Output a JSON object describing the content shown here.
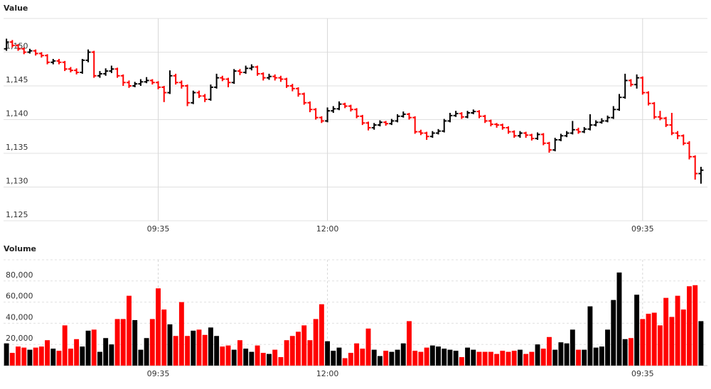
{
  "chart_data": [
    {
      "type": "ohlc",
      "title": "Value",
      "categories": [
        null,
        null,
        null,
        null,
        null,
        null,
        null,
        null,
        null,
        null,
        null,
        null,
        null,
        null,
        null,
        null,
        null,
        null,
        null,
        null,
        null,
        null,
        null,
        null,
        null,
        null,
        "09:35",
        null,
        null,
        null,
        null,
        null,
        null,
        null,
        null,
        null,
        null,
        null,
        null,
        null,
        null,
        null,
        null,
        null,
        null,
        null,
        null,
        null,
        null,
        null,
        null,
        null,
        null,
        null,
        null,
        "12:00",
        null,
        null,
        null,
        null,
        null,
        null,
        null,
        null,
        null,
        null,
        null,
        null,
        null,
        null,
        null,
        null,
        null,
        null,
        null,
        null,
        null,
        null,
        null,
        null,
        null,
        null,
        null,
        null,
        null,
        null,
        null,
        null,
        null,
        null,
        null,
        null,
        null,
        null,
        null,
        null,
        null,
        null,
        null,
        null,
        null,
        null,
        null,
        null,
        null,
        null,
        null,
        null,
        null,
        "09:35",
        null,
        null,
        null,
        null,
        null,
        null,
        null,
        null,
        null,
        null
      ],
      "open": [
        1150.5,
        1151.5,
        1151,
        1150.5,
        1150,
        1150.2,
        1149.8,
        1149.5,
        1148.5,
        1148.7,
        1148.5,
        1147.5,
        1147.3,
        1147,
        1148.8,
        1150,
        1146.5,
        1146.8,
        1147.2,
        1147.5,
        1146.5,
        1145.5,
        1145,
        1145.3,
        1145.6,
        1145.8,
        1145.5,
        1144.8,
        1144,
        1146.5,
        1145.5,
        1145,
        1142.5,
        1144,
        1143.5,
        1143,
        1144.8,
        1146.2,
        1146,
        1145.5,
        1147.2,
        1147,
        1147.6,
        1147.8,
        1146.8,
        1146.2,
        1146.4,
        1146.2,
        1146,
        1145,
        1144.6,
        1143.8,
        1142.5,
        1141.5,
        1140.3,
        1139.8,
        1141.3,
        1141.6,
        1142.3,
        1142,
        1141.5,
        1140.5,
        1139.5,
        1138.8,
        1139.2,
        1139.6,
        1139.4,
        1139.8,
        1140.5,
        1140.8,
        1140.3,
        1138.2,
        1138,
        1137.5,
        1138,
        1138.3,
        1139.8,
        1140.6,
        1140.9,
        1140.4,
        1141,
        1141.2,
        1140.5,
        1139.8,
        1139.3,
        1139.2,
        1138.8,
        1138.2,
        1137.6,
        1138,
        1137.7,
        1137.2,
        1137.8,
        1136.5,
        1135.5,
        1137,
        1137.6,
        1138,
        1138.5,
        1138.2,
        1138.6,
        1139.2,
        1139.6,
        1139.8,
        1140.3,
        1141.5,
        1143.3,
        1145.8,
        1145.2,
        1146.2,
        1144,
        1142.4,
        1140.4,
        1140.2,
        1139.2,
        1138,
        1137.6,
        1136.5,
        1134.5,
        1132
      ],
      "high": [
        1152,
        1151.8,
        1151.2,
        1150.7,
        1150.5,
        1150.4,
        1150,
        1149.7,
        1149,
        1149,
        1148.7,
        1147.8,
        1147.6,
        1149,
        1150.4,
        1150.2,
        1147.2,
        1147.6,
        1148,
        1147.7,
        1146.7,
        1145.8,
        1145.6,
        1146,
        1146.3,
        1146,
        1145.7,
        1145,
        1147.3,
        1146.8,
        1145.8,
        1145.2,
        1144.3,
        1144.3,
        1143.8,
        1145.2,
        1146.8,
        1146.5,
        1146.2,
        1147.5,
        1147.5,
        1148,
        1148.2,
        1148,
        1147,
        1146.8,
        1146.7,
        1146.5,
        1146.2,
        1145.3,
        1144.8,
        1144,
        1142.7,
        1141.7,
        1140.5,
        1141.8,
        1142,
        1142.7,
        1142.5,
        1142.2,
        1141.7,
        1140.7,
        1139.7,
        1139.5,
        1139.9,
        1139.8,
        1140.1,
        1140.8,
        1141.2,
        1141,
        1140.5,
        1138.5,
        1138.2,
        1138.3,
        1138.6,
        1140.1,
        1141,
        1141.3,
        1141.1,
        1141.3,
        1141.5,
        1141.4,
        1140.7,
        1140,
        1139.5,
        1139.4,
        1139,
        1138.4,
        1138.3,
        1138.2,
        1137.9,
        1138.1,
        1138,
        1136.7,
        1137.3,
        1137.9,
        1138.3,
        1139.8,
        1138.8,
        1138.9,
        1140.8,
        1139.9,
        1140.2,
        1140.6,
        1142,
        1143.8,
        1146.8,
        1146,
        1146.7,
        1146.4,
        1144.2,
        1142.6,
        1141.3,
        1140.4,
        1141,
        1138.3,
        1137.8,
        1136.8,
        1134.7,
        1133
      ],
      "low": [
        1150.2,
        1150.7,
        1150.2,
        1149.7,
        1149.8,
        1149.5,
        1149.2,
        1148.2,
        1148.2,
        1148.2,
        1147.2,
        1147,
        1146.7,
        1146.8,
        1148.5,
        1146.2,
        1146.2,
        1146.5,
        1146.9,
        1146.2,
        1145,
        1144.7,
        1144.8,
        1145,
        1145.4,
        1145.2,
        1144.5,
        1142.6,
        1143.8,
        1145.2,
        1144.6,
        1142,
        1142.3,
        1143.2,
        1142.6,
        1142.8,
        1144.6,
        1145.7,
        1144.8,
        1145.3,
        1146.6,
        1146.8,
        1147.3,
        1146.5,
        1145.8,
        1145.9,
        1145.8,
        1145.6,
        1144.7,
        1144.2,
        1143.4,
        1142.2,
        1141.1,
        1140,
        1139.5,
        1139.6,
        1141,
        1141.4,
        1141.7,
        1141.2,
        1140.2,
        1139.2,
        1138.4,
        1138.5,
        1139,
        1139.1,
        1139.2,
        1139.6,
        1140.3,
        1140,
        1137.9,
        1137.7,
        1137,
        1137.3,
        1137.8,
        1138.1,
        1139.6,
        1140.4,
        1140.1,
        1140.2,
        1140.8,
        1140.2,
        1139.5,
        1139,
        1138.8,
        1138.5,
        1137.9,
        1137.3,
        1137.3,
        1137.3,
        1136.9,
        1137,
        1136.2,
        1135.1,
        1135.3,
        1136.8,
        1137.4,
        1137.8,
        1137.9,
        1138,
        1138.4,
        1139,
        1139.4,
        1139.6,
        1140.1,
        1141.3,
        1143.1,
        1144.9,
        1144.6,
        1143.7,
        1142.1,
        1140.1,
        1139.9,
        1138.9,
        1137.7,
        1137.1,
        1136.2,
        1134.1,
        1131.1,
        1130.5
      ],
      "close": [
        1151.5,
        1151,
        1150.5,
        1150,
        1150.2,
        1149.8,
        1149.5,
        1148.5,
        1148.7,
        1148.5,
        1147.5,
        1147.3,
        1147,
        1148.8,
        1150,
        1146.5,
        1146.8,
        1147.2,
        1147.5,
        1146.5,
        1145.5,
        1145,
        1145.3,
        1145.6,
        1145.8,
        1145.5,
        1144.8,
        1144,
        1146.5,
        1145.5,
        1145,
        1142.5,
        1144,
        1143.5,
        1143,
        1144.8,
        1146.2,
        1146,
        1145.5,
        1147.2,
        1147,
        1147.6,
        1147.8,
        1146.8,
        1146.2,
        1146.4,
        1146.2,
        1146,
        1145,
        1144.6,
        1143.8,
        1142.5,
        1141.5,
        1140.3,
        1139.8,
        1141.3,
        1141.6,
        1142.3,
        1142,
        1141.5,
        1140.5,
        1139.5,
        1138.8,
        1139.2,
        1139.6,
        1139.4,
        1139.8,
        1140.5,
        1140.8,
        1140.3,
        1138.2,
        1138,
        1137.5,
        1138,
        1138.3,
        1139.8,
        1140.6,
        1140.9,
        1140.4,
        1141,
        1141.2,
        1140.5,
        1139.8,
        1139.3,
        1139.2,
        1138.8,
        1138.2,
        1137.6,
        1138,
        1137.7,
        1137.2,
        1137.8,
        1136.5,
        1135.5,
        1137,
        1137.6,
        1138,
        1138.5,
        1138.2,
        1138.6,
        1139.2,
        1139.6,
        1139.8,
        1140.3,
        1141.5,
        1143.3,
        1145.8,
        1145.2,
        1146.2,
        1144,
        1142.4,
        1140.4,
        1140.2,
        1139.2,
        1138,
        1137.6,
        1136.5,
        1134.5,
        1132,
        1132.5
      ],
      "ylim": [
        1125,
        1155
      ],
      "yticks": [
        {
          "value": 1125,
          "label": "1,125"
        },
        {
          "value": 1130,
          "label": "1,130"
        },
        {
          "value": 1135,
          "label": "1,135"
        },
        {
          "value": 1140,
          "label": "1,140"
        },
        {
          "value": 1145,
          "label": "1,145"
        },
        {
          "value": 1150,
          "label": "1,150"
        }
      ],
      "up_color": "#000000",
      "down_color": "#ff0000",
      "grid": true
    },
    {
      "type": "bar",
      "title": "Volume",
      "categories": [
        null,
        null,
        null,
        null,
        null,
        null,
        null,
        null,
        null,
        null,
        null,
        null,
        null,
        null,
        null,
        null,
        null,
        null,
        null,
        null,
        null,
        null,
        null,
        null,
        null,
        null,
        "09:35",
        null,
        null,
        null,
        null,
        null,
        null,
        null,
        null,
        null,
        null,
        null,
        null,
        null,
        null,
        null,
        null,
        null,
        null,
        null,
        null,
        null,
        null,
        null,
        null,
        null,
        null,
        null,
        null,
        "12:00",
        null,
        null,
        null,
        null,
        null,
        null,
        null,
        null,
        null,
        null,
        null,
        null,
        null,
        null,
        null,
        null,
        null,
        null,
        null,
        null,
        null,
        null,
        null,
        null,
        null,
        null,
        null,
        null,
        null,
        null,
        null,
        null,
        null,
        null,
        null,
        null,
        null,
        null,
        null,
        null,
        null,
        null,
        null,
        null,
        null,
        null,
        null,
        null,
        null,
        null,
        null,
        null,
        null,
        "09:35",
        null,
        null,
        null,
        null,
        null,
        null,
        null,
        null,
        null,
        null
      ],
      "values": [
        21000,
        12000,
        18000,
        17000,
        15000,
        17000,
        18000,
        24000,
        16000,
        14000,
        38000,
        16000,
        25000,
        18000,
        33000,
        34000,
        13000,
        26000,
        20000,
        44000,
        44000,
        66000,
        43000,
        15000,
        26000,
        44000,
        73000,
        53000,
        39000,
        28000,
        60000,
        28000,
        33000,
        34000,
        29000,
        36000,
        28000,
        18000,
        19000,
        15000,
        24000,
        16000,
        13000,
        19000,
        12000,
        11000,
        15000,
        8000,
        24000,
        28000,
        32000,
        38000,
        24000,
        44000,
        58000,
        23000,
        14000,
        17000,
        7000,
        12000,
        21000,
        16000,
        35000,
        15000,
        9000,
        14000,
        13000,
        15000,
        21000,
        42000,
        14000,
        13000,
        17000,
        19000,
        18000,
        16000,
        15000,
        14000,
        8000,
        17000,
        15000,
        13000,
        13000,
        13000,
        11000,
        14000,
        13000,
        14000,
        15000,
        11000,
        13000,
        20000,
        16000,
        27000,
        15000,
        22000,
        21000,
        34000,
        15000,
        15000,
        56000,
        17000,
        18000,
        34000,
        62000,
        88000,
        25000,
        26000,
        67000,
        44000,
        49000,
        50000,
        38000,
        64000,
        46000,
        66000,
        53000,
        75000,
        76000,
        42000
      ],
      "ylim": [
        0,
        100000
      ],
      "yticks": [
        {
          "value": 20000,
          "label": "20,000"
        },
        {
          "value": 40000,
          "label": "40,000"
        },
        {
          "value": 60000,
          "label": "60,000"
        },
        {
          "value": 80000,
          "label": "80,000"
        },
        {
          "value": 100000,
          "label": ""
        }
      ],
      "up_color": "#000000",
      "down_color": "#ff0000",
      "grid": true
    }
  ]
}
